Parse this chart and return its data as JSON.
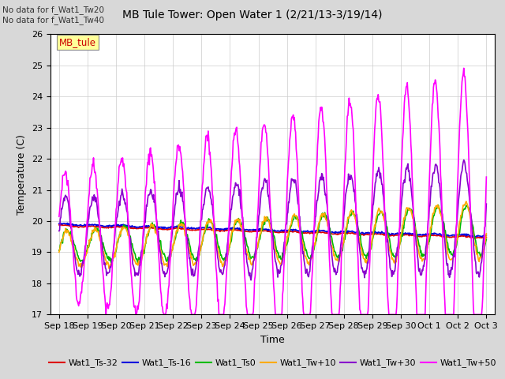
{
  "title": "MB Tule Tower: Open Water 1 (2/21/13-3/19/14)",
  "xlabel": "Time",
  "ylabel": "Temperature (C)",
  "ylim": [
    17.0,
    26.0
  ],
  "yticks": [
    17.0,
    18.0,
    19.0,
    20.0,
    21.0,
    22.0,
    23.0,
    24.0,
    25.0,
    26.0
  ],
  "note_lines": [
    "No data for f_Wat1_Tw20",
    "No data for f_Wat1_Tw40"
  ],
  "annotation_text": "MB_tule",
  "annotation_color": "#cc0000",
  "annotation_bg": "#ffff99",
  "annotation_border": "#888888",
  "bg_color": "#d8d8d8",
  "plot_bg": "#ffffff",
  "xtick_labels": [
    "Sep 18",
    "Sep 19",
    "Sep 20",
    "Sep 21",
    "Sep 22",
    "Sep 23",
    "Sep 24",
    "Sep 25",
    "Sep 26",
    "Sep 27",
    "Sep 28",
    "Sep 29",
    "Sep 30",
    "Oct 1",
    "Oct 2",
    "Oct 3"
  ],
  "legend_entries": [
    {
      "label": "Wat1_Ts-32",
      "color": "#dd0000"
    },
    {
      "label": "Wat1_Ts-16",
      "color": "#0000dd"
    },
    {
      "label": "Wat1_Ts0",
      "color": "#00bb00"
    },
    {
      "label": "Wat1_Tw+10",
      "color": "#ffaa00"
    },
    {
      "label": "Wat1_Tw+30",
      "color": "#8800cc"
    },
    {
      "label": "Wat1_Tw+50",
      "color": "#ff00ff"
    }
  ]
}
